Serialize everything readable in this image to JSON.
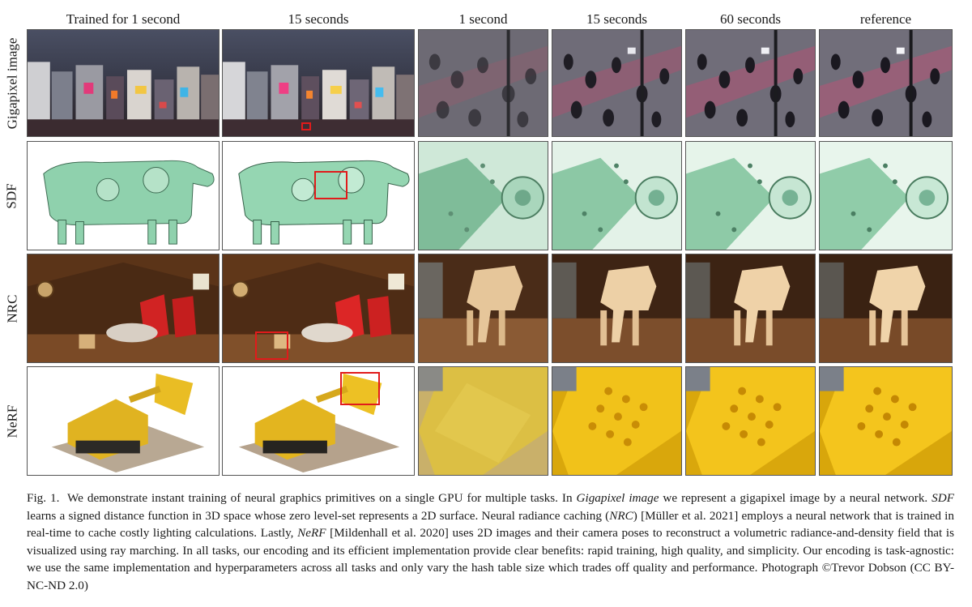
{
  "column_headers": [
    "Trained for 1 second",
    "15 seconds",
    "1 second",
    "15 seconds",
    "60 seconds",
    "reference"
  ],
  "row_labels": [
    "Gigapixel image",
    "SDF",
    "NRC",
    "NeRF"
  ],
  "caption": {
    "fig_label": "Fig. 1.",
    "s1": "We demonstrate instant training of neural graphics primitives on a single GPU for multiple tasks. In",
    "t_gigapixel": "Gigapixel image",
    "s2": "we represent a gigapixel image by a neural network.",
    "t_sdf": "SDF",
    "s3": "learns a signed distance function in 3D space whose zero level-set represents a 2D surface. Neural radiance caching (",
    "t_nrc": "NRC",
    "s4": ") [Müller et al. 2021] employs a neural network that is trained in real-time to cache costly lighting calculations. Lastly,",
    "t_nerf": "NeRF",
    "s5": "[Mildenhall et al. 2020] uses 2D images and their camera poses to reconstruct a volumetric radiance-and-density field that is visualized using ray marching. In all tasks, our encoding and its efficient implementation provide clear benefits: rapid training, high quality, and simplicity. Our encoding is task-agnostic: we use the same implementation and hyperparameters across all tasks and only vary the hash table size which trades off quality and performance. Photograph ©Trevor Dobson (CC BY-NC-ND 2.0)"
  },
  "colors": {
    "highlight_marker": "#e11b1b",
    "gigapixel_tint": "#3a3f52",
    "sdf_green": "#7fc4a0",
    "nrc_wood": "#6b3c1c",
    "nerf_yellow": "#e8b81e"
  }
}
